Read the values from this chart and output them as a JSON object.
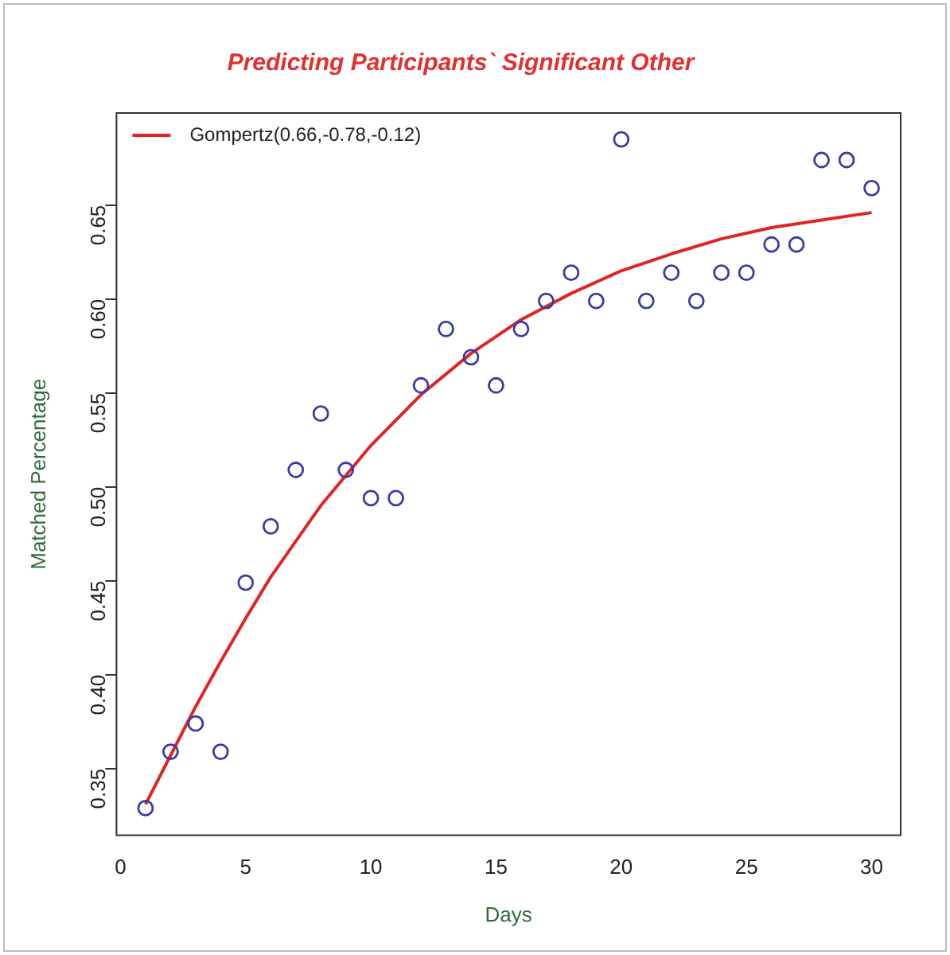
{
  "chart_data": {
    "type": "scatter",
    "title": "Predicting Participants` Significant Other",
    "xlabel": "Days",
    "ylabel": "Matched Percentage",
    "xlim": [
      -0.16,
      31.16
    ],
    "ylim": [
      0.3145,
      0.699
    ],
    "xticks": [
      0,
      5,
      10,
      15,
      20,
      25,
      30
    ],
    "yticks": [
      0.35,
      {
        "value": 0.4,
        "label": "0.40"
      },
      0.45,
      {
        "value": 0.5,
        "label": "0.50"
      },
      0.55,
      {
        "value": 0.6,
        "label": "0.60"
      },
      0.65
    ],
    "grid": false,
    "legend": "top left",
    "series": [
      {
        "color": "#3a3aa8",
        "marker": "circle",
        "x": [
          1,
          2,
          3,
          4,
          5,
          6,
          7,
          8,
          9,
          10,
          11,
          12,
          13,
          14,
          15,
          16,
          17,
          18,
          19,
          20,
          21,
          22,
          23,
          24,
          25,
          26,
          27,
          28,
          29,
          30
        ],
        "values": [
          0.329,
          0.359,
          0.374,
          0.359,
          0.449,
          0.479,
          0.509,
          0.539,
          0.509,
          0.494,
          0.494,
          0.554,
          0.584,
          0.569,
          0.554,
          0.584,
          0.599,
          0.614,
          0.599,
          0.685,
          0.599,
          0.614,
          0.599,
          0.614,
          0.614,
          0.629,
          0.629,
          0.674,
          0.674,
          0.659
        ]
      },
      {
        "type": "line",
        "name": "Gompertz(0.66,-0.78,-0.12)",
        "color": "#e02424",
        "marker": "none",
        "line_style": "solid",
        "x": [
          1,
          2,
          3,
          4,
          5,
          6,
          7,
          8,
          9,
          10,
          12,
          14,
          16,
          18,
          20,
          22,
          24,
          26,
          28,
          30
        ],
        "values": [
          0.331,
          0.357,
          0.383,
          0.407,
          0.43,
          0.452,
          0.471,
          0.49,
          0.506,
          0.522,
          0.549,
          0.571,
          0.589,
          0.603,
          0.615,
          0.624,
          0.632,
          0.638,
          0.642,
          0.646
        ]
      }
    ]
  }
}
